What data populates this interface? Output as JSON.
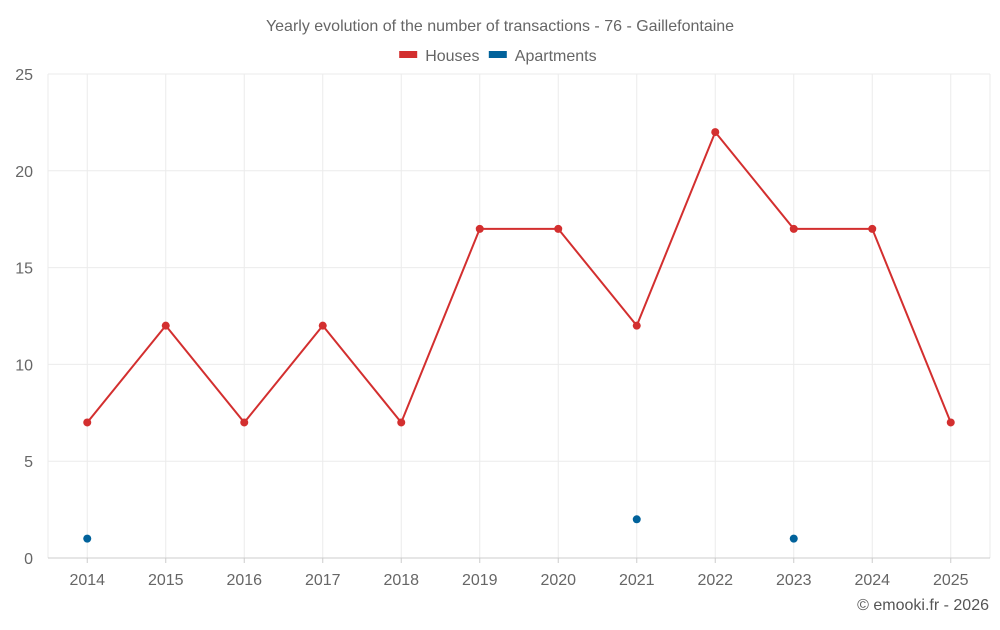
{
  "chart_data": {
    "type": "line",
    "title": "Yearly evolution of the number of transactions - 76 - Gaillefontaine",
    "categories": [
      "2014",
      "2015",
      "2016",
      "2017",
      "2018",
      "2019",
      "2020",
      "2021",
      "2022",
      "2023",
      "2024",
      "2025"
    ],
    "series": [
      {
        "name": "Houses",
        "color": "#d32f2f",
        "values": [
          7,
          12,
          7,
          12,
          7,
          17,
          17,
          12,
          22,
          17,
          17,
          7
        ],
        "line": true
      },
      {
        "name": "Apartments",
        "color": "#01629b",
        "values": [
          1,
          null,
          null,
          null,
          null,
          null,
          null,
          2,
          null,
          1,
          null,
          null
        ],
        "line": false
      }
    ],
    "ylim": [
      0,
      25
    ],
    "yticks": [
      0,
      5,
      10,
      15,
      20,
      25
    ],
    "grid": true,
    "legend": "top-center"
  },
  "footer": "© emooki.fr - 2026"
}
